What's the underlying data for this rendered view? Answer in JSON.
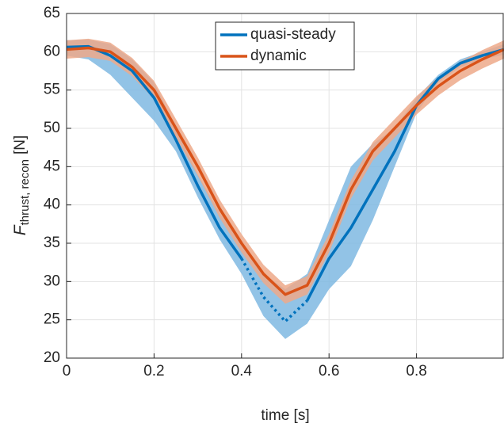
{
  "chart_data": {
    "type": "line",
    "x_label": "time [s]",
    "y_label_main": "F",
    "y_label_sub": "thrust, recon",
    "y_label_unit": "[N]",
    "x": [
      0,
      0.05,
      0.1,
      0.15,
      0.2,
      0.25,
      0.3,
      0.35,
      0.4,
      0.45,
      0.5,
      0.55,
      0.6,
      0.65,
      0.7,
      0.75,
      0.8,
      0.85,
      0.9,
      0.95,
      1
    ],
    "series": [
      {
        "name": "quasi-steady",
        "color": "#0072bd",
        "band_color": "#7fb8e2",
        "values": [
          60.6,
          60.7,
          59.5,
          57.5,
          54,
          48.5,
          42.5,
          37,
          33,
          null,
          null,
          27.5,
          33,
          37,
          42,
          47,
          53,
          56.5,
          58.5,
          59.5,
          60.3
        ],
        "dotted_values": [
          null,
          null,
          null,
          null,
          null,
          null,
          null,
          null,
          33,
          28,
          24.8,
          27.5,
          null,
          null,
          null,
          null,
          null,
          null,
          null,
          null,
          null
        ],
        "lower": [
          59.5,
          59,
          57,
          54,
          51,
          47,
          41,
          35.5,
          31,
          25.5,
          22.5,
          24.5,
          29,
          32,
          38,
          45,
          52,
          56,
          58,
          59,
          59.6
        ],
        "upper": [
          61.5,
          61.6,
          61,
          59,
          56,
          50,
          44,
          39,
          35,
          31,
          29,
          31,
          38,
          45,
          48,
          50,
          54,
          57,
          59,
          60,
          61
        ]
      },
      {
        "name": "dynamic",
        "color": "#d95319",
        "band_color": "#eda98a",
        "values": [
          60.3,
          60.5,
          60,
          58,
          55,
          50,
          45,
          39.5,
          35,
          31,
          28.3,
          29.5,
          35,
          42,
          47,
          50,
          53,
          55.5,
          57.5,
          59,
          60.3
        ],
        "lower": [
          59.1,
          59.3,
          58.8,
          56.8,
          53.8,
          48.8,
          43.8,
          38.3,
          33.8,
          29.8,
          27.1,
          28.3,
          33.8,
          40.8,
          45.8,
          48.8,
          51.8,
          54.3,
          56.3,
          57.8,
          59.1
        ],
        "upper": [
          61.5,
          61.7,
          61.2,
          59.2,
          56.2,
          51.2,
          46.2,
          40.7,
          36.2,
          32.2,
          29.5,
          30.7,
          36.2,
          43.2,
          48.2,
          51.2,
          54.2,
          56.7,
          58.7,
          60.2,
          61.5
        ]
      }
    ],
    "xlim": [
      0,
      1
    ],
    "xticks": [
      0,
      0.2,
      0.4,
      0.6,
      0.8
    ],
    "ylim": [
      20,
      65
    ],
    "yticks": [
      20,
      25,
      30,
      35,
      40,
      45,
      50,
      55,
      60,
      65
    ],
    "grid": true,
    "legend": "top"
  }
}
